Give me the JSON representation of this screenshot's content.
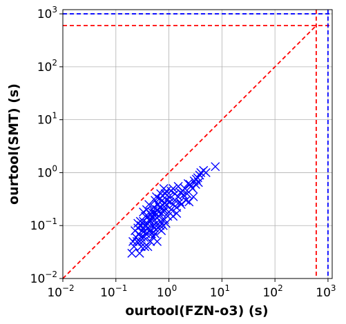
{
  "chart_data": {
    "type": "scatter",
    "title": "",
    "xlabel": "ourtool(FZN-o3) (s)",
    "ylabel": "ourtool(SMT) (s)",
    "xscale": "log",
    "yscale": "log",
    "xlim": [
      0.01,
      1200
    ],
    "ylim": [
      0.01,
      1200
    ],
    "grid": true,
    "x_ticks": [
      {
        "base": "10",
        "exp": "−2"
      },
      {
        "base": "10",
        "exp": "−1"
      },
      {
        "base": "10",
        "exp": "0"
      },
      {
        "base": "10",
        "exp": "1"
      },
      {
        "base": "10",
        "exp": "2"
      },
      {
        "base": "10",
        "exp": "3"
      }
    ],
    "y_ticks": [
      {
        "base": "10",
        "exp": "−2"
      },
      {
        "base": "10",
        "exp": "−1"
      },
      {
        "base": "10",
        "exp": "0"
      },
      {
        "base": "10",
        "exp": "1"
      },
      {
        "base": "10",
        "exp": "2"
      },
      {
        "base": "10",
        "exp": "3"
      }
    ],
    "reference_lines": {
      "diagonal": {
        "from": [
          0.01,
          0.01
        ],
        "to": [
          600,
          600
        ],
        "color": "#ff0000",
        "style": "dashed"
      },
      "red_timeout": {
        "value": 600,
        "color": "#ff0000",
        "style": "dashed"
      },
      "blue_timeout": {
        "value": 1000,
        "color": "#0000ff",
        "style": "dashed"
      }
    },
    "marker": "x",
    "marker_color": "#0000ff",
    "points": [
      [
        0.2,
        0.03
      ],
      [
        0.22,
        0.04
      ],
      [
        0.25,
        0.05
      ],
      [
        0.28,
        0.03
      ],
      [
        0.3,
        0.06
      ],
      [
        0.32,
        0.05
      ],
      [
        0.35,
        0.08
      ],
      [
        0.27,
        0.07
      ],
      [
        0.24,
        0.06
      ],
      [
        0.26,
        0.09
      ],
      [
        0.3,
        0.1
      ],
      [
        0.33,
        0.12
      ],
      [
        0.36,
        0.1
      ],
      [
        0.4,
        0.15
      ],
      [
        0.38,
        0.2
      ],
      [
        0.42,
        0.25
      ],
      [
        0.45,
        0.12
      ],
      [
        0.5,
        0.1
      ],
      [
        0.48,
        0.18
      ],
      [
        0.52,
        0.22
      ],
      [
        0.55,
        0.3
      ],
      [
        0.6,
        0.2
      ],
      [
        0.65,
        0.15
      ],
      [
        0.7,
        0.12
      ],
      [
        0.58,
        0.35
      ],
      [
        0.62,
        0.25
      ],
      [
        0.75,
        0.3
      ],
      [
        0.8,
        0.2
      ],
      [
        0.85,
        0.4
      ],
      [
        0.9,
        0.25
      ],
      [
        0.45,
        0.05
      ],
      [
        0.4,
        0.04
      ],
      [
        0.35,
        0.04
      ],
      [
        0.5,
        0.06
      ],
      [
        0.55,
        0.07
      ],
      [
        0.6,
        0.05
      ],
      [
        0.3,
        0.04
      ],
      [
        0.28,
        0.05
      ],
      [
        0.31,
        0.08
      ],
      [
        0.34,
        0.06
      ],
      [
        0.37,
        0.07
      ],
      [
        0.41,
        0.09
      ],
      [
        0.44,
        0.08
      ],
      [
        0.47,
        0.07
      ],
      [
        0.53,
        0.09
      ],
      [
        0.57,
        0.11
      ],
      [
        0.63,
        0.09
      ],
      [
        0.68,
        0.1
      ],
      [
        0.72,
        0.08
      ],
      [
        0.78,
        0.1
      ],
      [
        0.82,
        0.13
      ],
      [
        0.88,
        0.11
      ],
      [
        0.95,
        0.15
      ],
      [
        1.0,
        0.18
      ],
      [
        1.1,
        0.2
      ],
      [
        1.2,
        0.25
      ],
      [
        1.3,
        0.3
      ],
      [
        1.4,
        0.22
      ],
      [
        1.5,
        0.35
      ],
      [
        1.6,
        0.28
      ],
      [
        1.0,
        0.35
      ],
      [
        1.1,
        0.45
      ],
      [
        1.2,
        0.5
      ],
      [
        1.3,
        0.4
      ],
      [
        1.5,
        0.55
      ],
      [
        1.8,
        0.45
      ],
      [
        2.0,
        0.5
      ],
      [
        2.2,
        0.4
      ],
      [
        2.5,
        0.6
      ],
      [
        2.8,
        0.5
      ],
      [
        3.0,
        0.7
      ],
      [
        3.2,
        0.6
      ],
      [
        3.5,
        0.8
      ],
      [
        3.8,
        0.9
      ],
      [
        4.0,
        1.0
      ],
      [
        4.5,
        1.1
      ],
      [
        5.0,
        1.0
      ],
      [
        7.5,
        1.3
      ],
      [
        1.7,
        0.25
      ],
      [
        2.1,
        0.3
      ],
      [
        2.4,
        0.28
      ],
      [
        2.9,
        0.35
      ],
      [
        1.2,
        0.15
      ],
      [
        1.4,
        0.17
      ],
      [
        0.9,
        0.45
      ],
      [
        0.8,
        0.5
      ],
      [
        0.7,
        0.4
      ],
      [
        0.66,
        0.32
      ],
      [
        0.92,
        0.3
      ],
      [
        1.05,
        0.28
      ],
      [
        0.36,
        0.15
      ],
      [
        0.33,
        0.18
      ],
      [
        0.29,
        0.12
      ],
      [
        0.26,
        0.11
      ],
      [
        0.23,
        0.08
      ],
      [
        0.21,
        0.05
      ],
      [
        0.39,
        0.11
      ],
      [
        0.43,
        0.13
      ],
      [
        0.46,
        0.16
      ],
      [
        0.49,
        0.14
      ],
      [
        0.51,
        0.19
      ],
      [
        0.54,
        0.17
      ],
      [
        0.59,
        0.14
      ],
      [
        0.64,
        0.18
      ],
      [
        0.67,
        0.22
      ],
      [
        0.73,
        0.17
      ],
      [
        0.77,
        0.24
      ],
      [
        0.83,
        0.19
      ],
      [
        3.3,
        0.75
      ],
      [
        3.6,
        0.65
      ],
      [
        2.6,
        0.55
      ],
      [
        2.3,
        0.62
      ],
      [
        1.9,
        0.38
      ],
      [
        1.65,
        0.42
      ]
    ]
  }
}
